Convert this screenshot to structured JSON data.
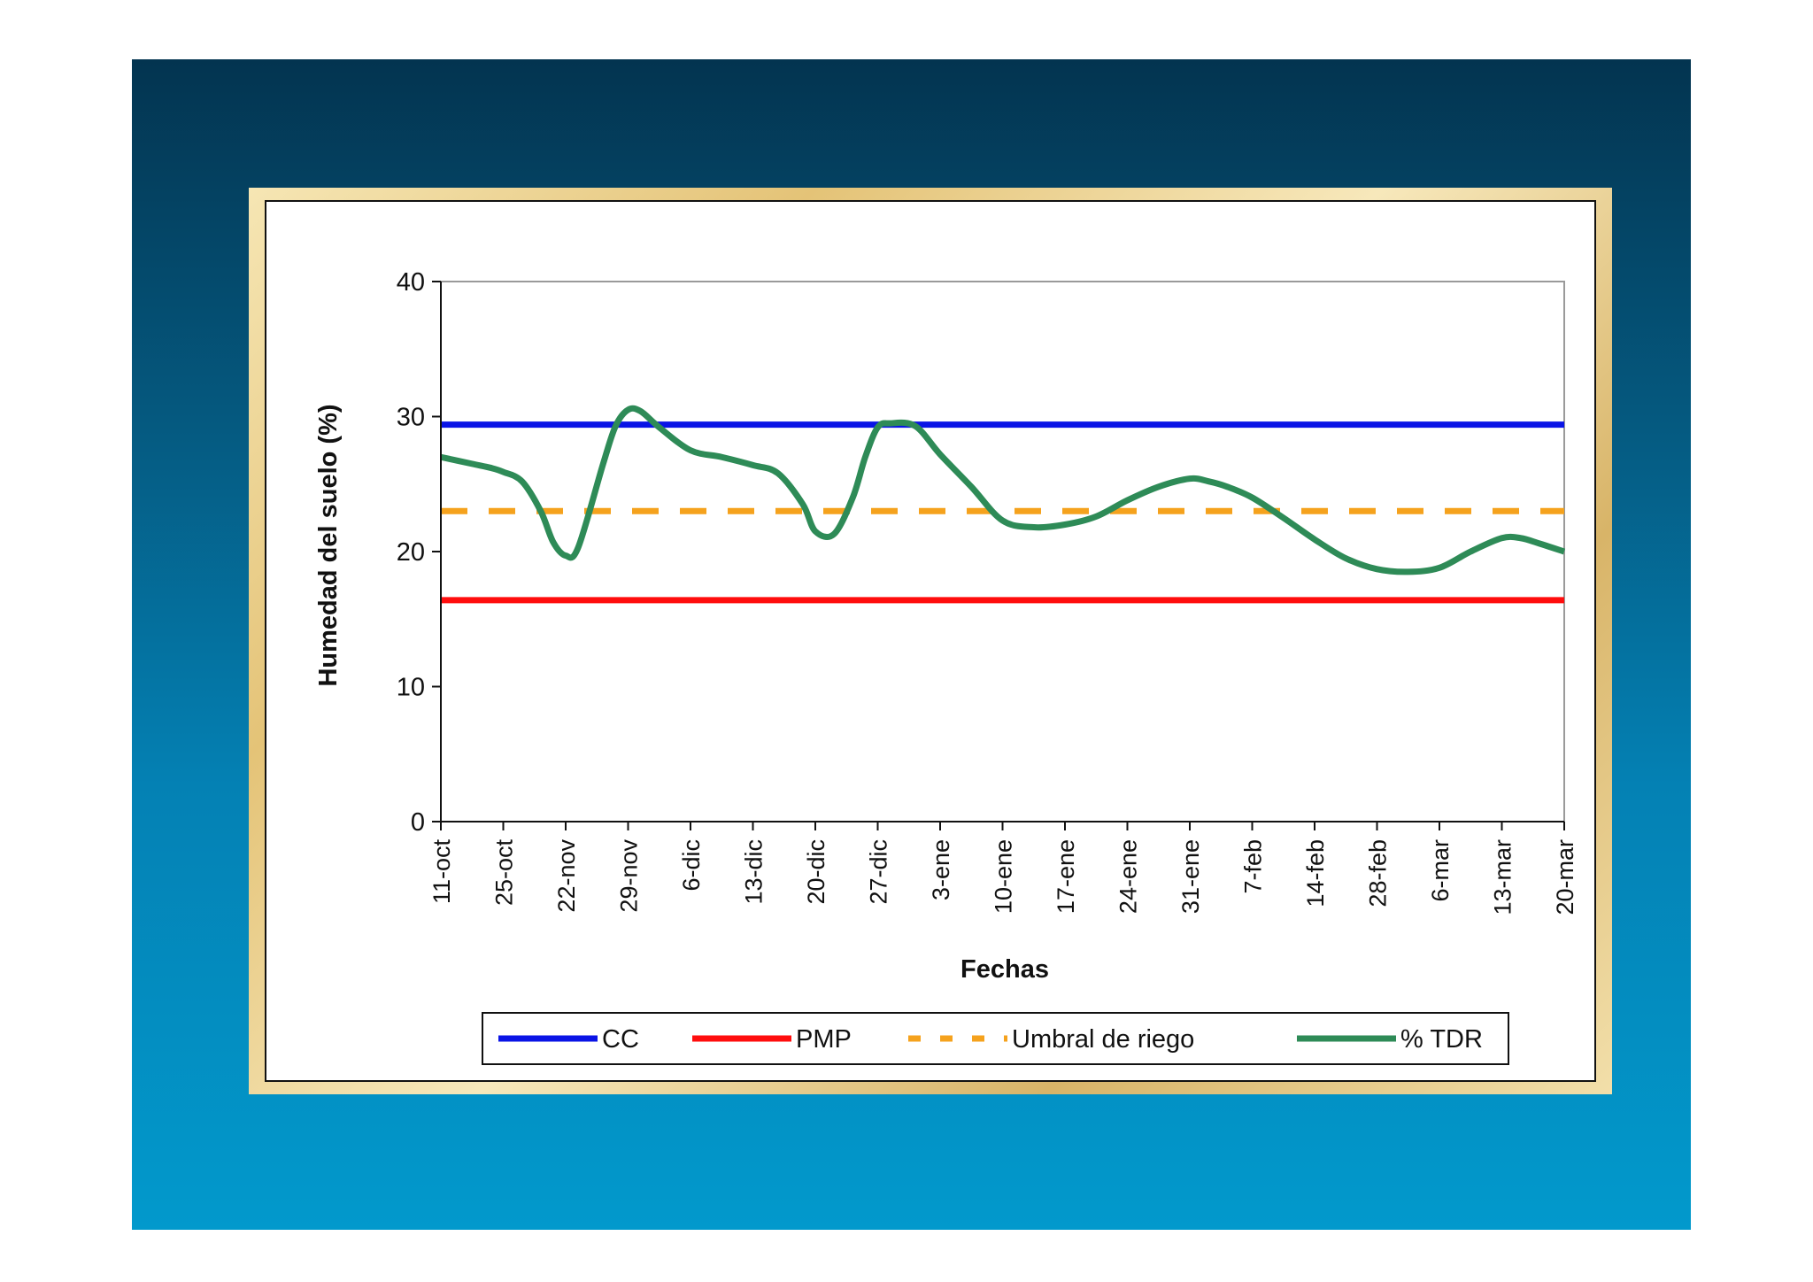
{
  "chart_data": {
    "type": "line",
    "title": "",
    "xlabel": "Fechas",
    "ylabel": "Humedad del suelo (%)",
    "ylim": [
      0,
      40
    ],
    "yticks": [
      0,
      10,
      20,
      30,
      40
    ],
    "categories": [
      "11-oct",
      "25-oct",
      "22-nov",
      "29-nov",
      "6-dic",
      "13-dic",
      "20-dic",
      "27-dic",
      "3-ene",
      "10-ene",
      "17-ene",
      "24-ene",
      "31-ene",
      "7-feb",
      "14-feb",
      "28-feb",
      "6-mar",
      "13-mar",
      "20-mar"
    ],
    "legend_position": "bottom",
    "series": [
      {
        "name": "CC",
        "style": "solid",
        "color": "#0a14e6",
        "x": [
          0,
          18
        ],
        "values": [
          29.4,
          29.4
        ]
      },
      {
        "name": "PMP",
        "style": "solid",
        "color": "#ff0d0d",
        "x": [
          0,
          18
        ],
        "values": [
          16.4,
          16.4
        ]
      },
      {
        "name": "Umbral de riego",
        "style": "dashed",
        "color": "#f5a21d",
        "x": [
          0,
          18
        ],
        "values": [
          23.0,
          23.0
        ]
      },
      {
        "name": "% TDR",
        "style": "solid",
        "color": "#2e8b57",
        "x": [
          0,
          0.5,
          0.8,
          1.0,
          1.3,
          1.6,
          1.8,
          2.0,
          2.2,
          2.6,
          2.8,
          3.0,
          3.2,
          3.5,
          4.0,
          4.5,
          5.0,
          5.4,
          5.8,
          6.0,
          6.3,
          6.6,
          6.8,
          7.0,
          7.2,
          7.6,
          8.0,
          8.5,
          9.0,
          9.5,
          10.0,
          10.5,
          11.0,
          11.5,
          12.0,
          12.3,
          12.6,
          13.0,
          13.5,
          14.0,
          14.5,
          15.0,
          15.5,
          16.0,
          16.5,
          17.0,
          17.3,
          17.6,
          18.0
        ],
        "values": [
          27.0,
          26.5,
          26.2,
          25.9,
          25.2,
          23.0,
          20.7,
          19.7,
          20.3,
          26.5,
          29.3,
          30.5,
          30.4,
          29.2,
          27.5,
          27.0,
          26.4,
          25.8,
          23.5,
          21.5,
          21.3,
          24.0,
          27.0,
          29.2,
          29.5,
          29.3,
          27.2,
          24.8,
          22.3,
          21.8,
          22.0,
          22.6,
          23.8,
          24.8,
          25.4,
          25.2,
          24.8,
          24.0,
          22.5,
          20.9,
          19.5,
          18.7,
          18.5,
          18.8,
          20.0,
          21.0,
          21.0,
          20.6,
          20.0
        ]
      }
    ]
  }
}
